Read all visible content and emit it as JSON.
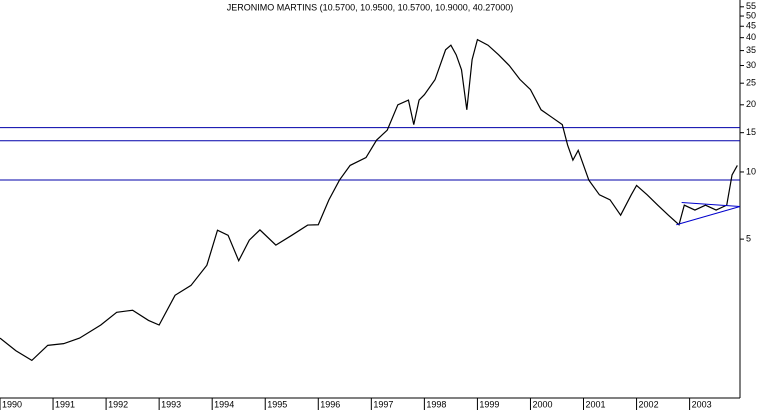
{
  "chart_data": {
    "type": "line",
    "title": "JERONIMO MARTINS (10.5700, 10.9500, 10.5700, 10.9000, 40.27000)",
    "log_scale": true,
    "x": [
      1990.0,
      1990.3,
      1990.6,
      1990.9,
      1991.2,
      1991.5,
      1991.9,
      1992.2,
      1992.5,
      1992.8,
      1993.0,
      1993.3,
      1993.6,
      1993.9,
      1994.1,
      1994.3,
      1994.5,
      1994.7,
      1994.9,
      1995.2,
      1995.5,
      1995.8,
      1996.0,
      1996.2,
      1996.4,
      1996.6,
      1996.9,
      1997.1,
      1997.3,
      1997.5,
      1997.7,
      1997.8,
      1997.9,
      1998.0,
      1998.2,
      1998.4,
      1998.5,
      1998.6,
      1998.7,
      1998.8,
      1998.9,
      1999.0,
      1999.2,
      1999.4,
      1999.6,
      1999.8,
      2000.0,
      2000.2,
      2000.4,
      2000.6,
      2000.7,
      2000.8,
      2000.9,
      2001.1,
      2001.3,
      2001.5,
      2001.7,
      2001.9,
      2002.0,
      2002.2,
      2002.4,
      2002.6,
      2002.8,
      2002.9,
      2003.1,
      2003.3,
      2003.5,
      2003.7,
      2003.8,
      2003.9
    ],
    "series": [
      {
        "color": "#000000",
        "values": [
          1.8,
          1.58,
          1.43,
          1.67,
          1.7,
          1.8,
          2.06,
          2.35,
          2.4,
          2.16,
          2.06,
          2.8,
          3.1,
          3.82,
          5.48,
          5.2,
          4.0,
          4.95,
          5.5,
          4.7,
          5.2,
          5.78,
          5.8,
          7.5,
          9.2,
          10.7,
          11.6,
          13.9,
          15.4,
          20,
          21,
          16.3,
          21,
          22.2,
          25.9,
          35.3,
          37,
          33.5,
          28.7,
          19,
          31.9,
          39.2,
          37,
          33.5,
          30,
          26,
          23.4,
          19,
          17.6,
          16.3,
          13.2,
          11.3,
          12.5,
          9.2,
          7.9,
          7.5,
          6.4,
          7.9,
          8.7,
          7.9,
          7.1,
          6.4,
          5.8,
          7.1,
          6.75,
          7.1,
          6.75,
          7.1,
          9.7,
          10.7
        ]
      }
    ],
    "hlines": {
      "color": "#0000aa",
      "values": [
        15.8,
        13.8,
        9.2
      ]
    },
    "trendlines": {
      "color": "#0000cc",
      "lines": [
        {
          "x": [
            2002.75,
            2003.95
          ],
          "values": [
            5.8,
            7.0
          ]
        },
        {
          "x": [
            2002.85,
            2003.95
          ],
          "values": [
            7.3,
            7.0
          ]
        }
      ]
    },
    "xlim": [
      1990,
      2003.95
    ],
    "xticks": [
      1990,
      1991,
      1992,
      1993,
      1994,
      1995,
      1996,
      1997,
      1998,
      1999,
      2000,
      2001,
      2002,
      2003
    ],
    "ylim": [
      0.97,
      59
    ],
    "yticks": [
      5,
      10,
      15,
      20,
      25,
      30,
      35,
      40,
      45,
      50,
      55
    ]
  }
}
